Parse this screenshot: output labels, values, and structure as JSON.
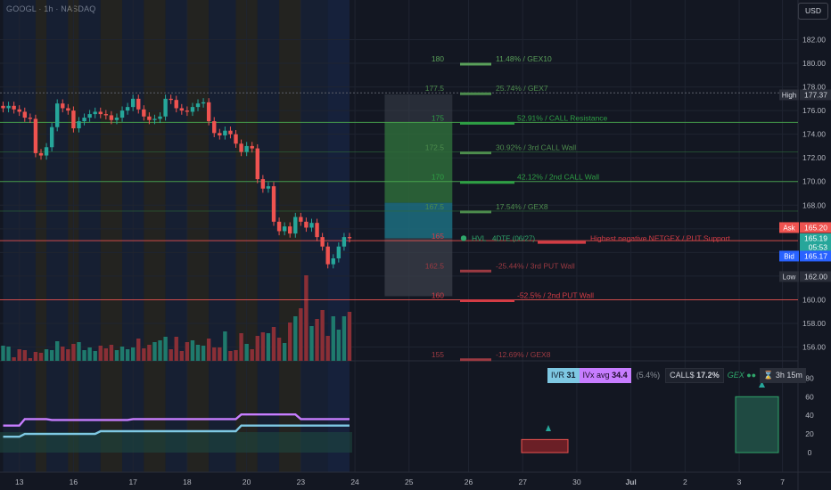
{
  "header": {
    "symbol_text": "GOOGL · 1h · NASDAQ",
    "currency_button": "USD"
  },
  "chart_data": {
    "type": "candlestick",
    "symbol": "GOOGL",
    "interval": "1h",
    "exchange": "NASDAQ",
    "currency": "USD",
    "ylim": [
      154.4,
      183.5
    ],
    "y_ticks": [
      156,
      158,
      160,
      162,
      164,
      166,
      168,
      170,
      172,
      174,
      176,
      178,
      180,
      182
    ],
    "y_tick_labels": [
      "156.00",
      "158.00",
      "160.00",
      "162.00",
      "164.00",
      "166.00",
      "168.00",
      "170.00",
      "172.00",
      "174.00",
      "176.00",
      "178.00",
      "180.00",
      "182.00"
    ],
    "x_ticks": [
      {
        "label": "13",
        "bar": 3
      },
      {
        "label": "16",
        "bar": 13
      },
      {
        "label": "17",
        "bar": 24
      },
      {
        "label": "18",
        "bar": 34
      },
      {
        "label": "20",
        "bar": 45
      },
      {
        "label": "23",
        "bar": 55
      },
      {
        "label": "24",
        "bar": 65
      },
      {
        "label": "25",
        "bar": 75
      },
      {
        "label": "26",
        "bar": 86
      },
      {
        "label": "27",
        "bar": 96
      },
      {
        "label": "30",
        "bar": 106
      },
      {
        "label": "Jul",
        "bar": 116
      },
      {
        "label": "2",
        "bar": 126
      },
      {
        "label": "3",
        "bar": 136
      },
      {
        "label": "7",
        "bar": 144
      }
    ],
    "closes": [
      176.2,
      176.4,
      176.1,
      175.9,
      175.4,
      175.3,
      172.4,
      172.2,
      172.9,
      174.6,
      176.6,
      176.2,
      176.0,
      174.5,
      175.1,
      175.4,
      175.7,
      175.9,
      175.7,
      175.6,
      175.2,
      175.4,
      176.0,
      176.3,
      177.0,
      176.1,
      175.5,
      175.2,
      175.3,
      175.5,
      177.0,
      176.9,
      176.2,
      176.0,
      175.9,
      176.3,
      176.6,
      176.7,
      175.1,
      174.1,
      173.9,
      174.3,
      174.0,
      173.2,
      172.5,
      173.0,
      172.8,
      170.2,
      169.4,
      169.6,
      166.6,
      165.8,
      166.2,
      165.6,
      167.0,
      166.6,
      166.1,
      166.5,
      165.3,
      164.5,
      163.0,
      163.5,
      164.5,
      165.3,
      165.2
    ],
    "volume_bars": [
      17,
      16,
      4,
      13,
      12,
      3,
      10,
      9,
      13,
      12,
      22,
      16,
      13,
      19,
      21,
      12,
      15,
      11,
      17,
      14,
      18,
      12,
      16,
      13,
      15,
      25,
      14,
      18,
      21,
      23,
      27,
      13,
      27,
      11,
      21,
      23,
      18,
      17,
      25,
      15,
      15,
      33,
      11,
      12,
      31,
      19,
      13,
      28,
      32,
      31,
      38,
      26,
      20,
      43,
      50,
      59,
      96,
      39,
      47,
      57,
      28,
      50,
      35,
      50,
      55
    ],
    "volume_colors_note": "green=up, red=down",
    "bid_ask": {
      "ask_label": "Ask",
      "ask_value": "165.20",
      "last_value": "165.19",
      "countdown": "05:53",
      "bid_label": "Bid",
      "bid_value": "165.17"
    },
    "high_label": "High",
    "high_value": "177.37",
    "low_label": "Low",
    "low_value": "162.00",
    "gex_levels": [
      {
        "strike": "180",
        "price": 180.0,
        "text": "11.48% / GEX10",
        "color": "#5aa05a"
      },
      {
        "strike": "177.5",
        "price": 177.5,
        "text": "25.74% / GEX7",
        "color": "#4d8c4d"
      },
      {
        "strike": "175",
        "price": 175.0,
        "text": "52.91% / CALL Resistance",
        "color": "#2e9f44"
      },
      {
        "strike": "172.5",
        "price": 172.5,
        "text": "30.92% / 3rd CALL Wall",
        "color": "#4d8c4d"
      },
      {
        "strike": "170",
        "price": 170.0,
        "text": "42.12% / 2nd CALL Wall",
        "color": "#2e9f44"
      },
      {
        "strike": "167.5",
        "price": 167.5,
        "text": "17.54% / GEX8",
        "color": "#4d8c4d"
      },
      {
        "strike": "165",
        "price": 165.0,
        "text": "Highest negative NETGEX / PUT Support",
        "color": "#d43c45"
      },
      {
        "strike": "162.5",
        "price": 162.5,
        "text": "-25.44% / 3rd PUT Wall",
        "color": "#9c3a42"
      },
      {
        "strike": "160",
        "price": 160.0,
        "text": "-52.5% / 2nd PUT Wall",
        "color": "#d43c45"
      },
      {
        "strike": "155",
        "price": 155.0,
        "text": "-12.69% / GEX8",
        "color": "#9c3a42"
      }
    ],
    "hvl": {
      "text": "HVL",
      "dte": "4DTE (06/27)",
      "price": 165.2
    },
    "iv_panel": {
      "y_ticks": [
        0,
        20,
        40,
        60,
        80
      ],
      "ivx_avg_line": [
        29,
        29,
        29,
        29,
        36,
        36,
        36,
        36,
        36,
        35,
        35,
        35,
        35,
        35,
        35,
        35,
        35,
        35,
        35,
        35,
        35,
        35,
        35,
        35,
        36,
        36,
        36,
        36,
        36,
        36,
        36,
        36,
        36,
        36,
        36,
        36,
        36,
        36,
        36,
        36,
        36,
        36,
        36,
        36,
        41,
        41,
        41,
        41,
        41,
        41,
        41,
        41,
        41,
        41,
        41,
        36,
        36,
        36,
        36,
        36,
        36,
        36,
        36,
        36,
        36
      ],
      "ivr_line": [
        17,
        17,
        17,
        17,
        20,
        20,
        20,
        20,
        20,
        20,
        20,
        20,
        20,
        20,
        20,
        20,
        20,
        20,
        23,
        23,
        23,
        23,
        23,
        23,
        23,
        23,
        23,
        23,
        23,
        23,
        23,
        23,
        23,
        23,
        23,
        23,
        23,
        23,
        23,
        23,
        23,
        23,
        23,
        23,
        29,
        29,
        29,
        29,
        29,
        29,
        29,
        29,
        29,
        29,
        29,
        29,
        29,
        29,
        29,
        29,
        29,
        29,
        29,
        29,
        29
      ]
    }
  },
  "status_bar": {
    "ivr_label": "IVR",
    "ivr_value": "31",
    "ivx_label": "IVx avg",
    "ivx_value": "34.4",
    "change": "(5.4%)",
    "calls_label": "CALL$",
    "calls_value": "17.2%",
    "gex_label": "GEX",
    "timer": "3h 15m"
  },
  "colors": {
    "up": "#26a69a",
    "down": "#ef5350",
    "background": "#131722",
    "ivx_line": "#c77dff",
    "ivr_line": "#7ec8e3"
  }
}
